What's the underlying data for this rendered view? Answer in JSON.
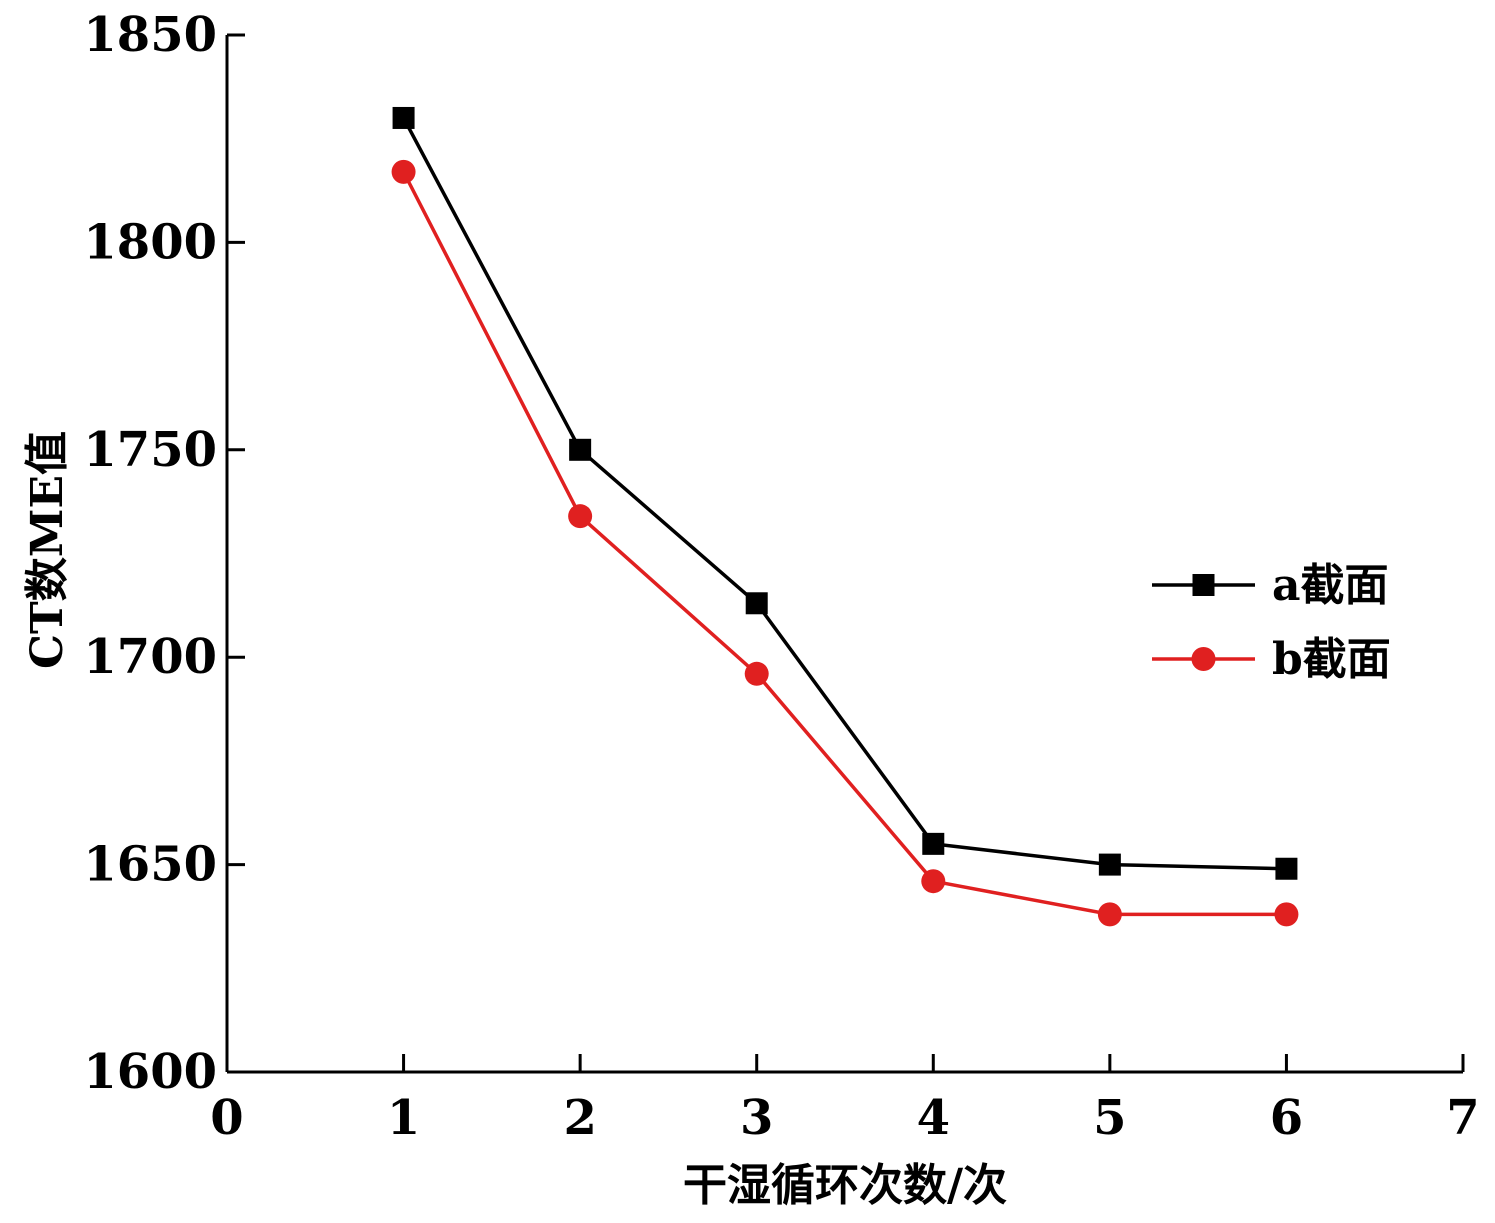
{
  "chart_data": {
    "type": "line",
    "xlabel": "干湿循环次数/次",
    "ylabel": "CT数ME值",
    "xlim": [
      0,
      7
    ],
    "ylim": [
      1600,
      1850
    ],
    "xticks": [
      0,
      1,
      2,
      3,
      4,
      5,
      6,
      7
    ],
    "yticks": [
      1600,
      1650,
      1700,
      1750,
      1800,
      1850
    ],
    "grid": false,
    "legend_position": "right",
    "x": [
      1,
      2,
      3,
      4,
      5,
      6
    ],
    "series": [
      {
        "name": "a截面",
        "marker": "square",
        "color": "#000000",
        "values": [
          1830,
          1750,
          1713,
          1655,
          1650,
          1649
        ]
      },
      {
        "name": "b截面",
        "marker": "circle",
        "color": "#e02020",
        "values": [
          1817,
          1734,
          1696,
          1646,
          1638,
          1638
        ]
      }
    ]
  }
}
